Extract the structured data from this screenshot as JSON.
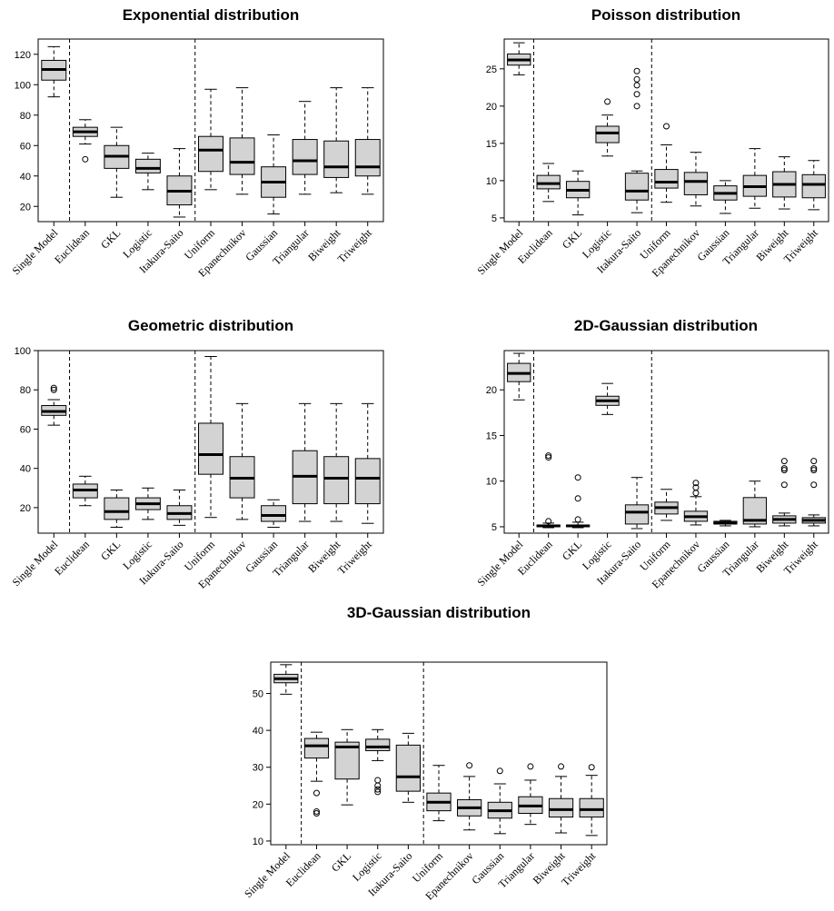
{
  "chart_data": [
    {
      "type": "boxplot",
      "title": "Exponential distribution",
      "categories": [
        "Single Model",
        "Euclidean",
        "GKL",
        "Logistic",
        "Itakura-Saito",
        "Uniform",
        "Epanechnikov",
        "Gaussian",
        "Triangular",
        "Biweight",
        "Triweight"
      ],
      "yticks": [
        20,
        40,
        60,
        80,
        100,
        120
      ],
      "ylim": [
        10,
        130
      ],
      "separators_after": [
        1,
        5
      ],
      "boxes": [
        {
          "min": 92,
          "q1": 103,
          "median": 110,
          "q3": 116,
          "max": 125,
          "outliers": []
        },
        {
          "min": 61,
          "q1": 66,
          "median": 69,
          "q3": 72,
          "max": 77,
          "outliers": [
            51
          ]
        },
        {
          "min": 26,
          "q1": 45,
          "median": 53,
          "q3": 60,
          "max": 72,
          "outliers": []
        },
        {
          "min": 31,
          "q1": 42,
          "median": 45,
          "q3": 51,
          "max": 55,
          "outliers": []
        },
        {
          "min": 13,
          "q1": 21,
          "median": 30,
          "q3": 40,
          "max": 58,
          "outliers": []
        },
        {
          "min": 31,
          "q1": 43,
          "median": 57,
          "q3": 66,
          "max": 97,
          "outliers": []
        },
        {
          "min": 28,
          "q1": 41,
          "median": 49,
          "q3": 65,
          "max": 98,
          "outliers": []
        },
        {
          "min": 15,
          "q1": 26,
          "median": 36,
          "q3": 46,
          "max": 67,
          "outliers": []
        },
        {
          "min": 28,
          "q1": 41,
          "median": 50,
          "q3": 64,
          "max": 89,
          "outliers": []
        },
        {
          "min": 29,
          "q1": 39,
          "median": 46,
          "q3": 63,
          "max": 98,
          "outliers": []
        },
        {
          "min": 28,
          "q1": 40,
          "median": 46,
          "q3": 64,
          "max": 98,
          "outliers": []
        }
      ]
    },
    {
      "type": "boxplot",
      "title": "Poisson distribution",
      "categories": [
        "Single Model",
        "Euclidean",
        "GKL",
        "Logistic",
        "Itakura-Saito",
        "Uniform",
        "Epanechnikov",
        "Gaussian",
        "Triangular",
        "Biweight",
        "Triweight"
      ],
      "yticks": [
        5,
        10,
        15,
        20,
        25
      ],
      "ylim": [
        4.5,
        29
      ],
      "separators_after": [
        1,
        5
      ],
      "boxes": [
        {
          "min": 24.2,
          "q1": 25.5,
          "median": 26.2,
          "q3": 27,
          "max": 28.5,
          "outliers": []
        },
        {
          "min": 7.2,
          "q1": 8.9,
          "median": 9.6,
          "q3": 10.7,
          "max": 12.3,
          "outliers": []
        },
        {
          "min": 5.4,
          "q1": 7.7,
          "median": 8.7,
          "q3": 9.9,
          "max": 11.3,
          "outliers": []
        },
        {
          "min": 13.3,
          "q1": 15.1,
          "median": 16.4,
          "q3": 17.3,
          "max": 18.8,
          "outliers": [
            20.6
          ]
        },
        {
          "min": 5.7,
          "q1": 7.4,
          "median": 8.6,
          "q3": 11,
          "max": 11.3,
          "outliers": [
            20,
            21.6,
            22.8,
            23.6,
            24.7
          ]
        },
        {
          "min": 7.1,
          "q1": 9,
          "median": 9.8,
          "q3": 11.5,
          "max": 14.8,
          "outliers": [
            17.3
          ]
        },
        {
          "min": 6.6,
          "q1": 8.1,
          "median": 9.9,
          "q3": 11.1,
          "max": 13.8,
          "outliers": []
        },
        {
          "min": 5.6,
          "q1": 7.4,
          "median": 8.3,
          "q3": 9.3,
          "max": 10,
          "outliers": []
        },
        {
          "min": 6.3,
          "q1": 7.9,
          "median": 9.2,
          "q3": 10.7,
          "max": 14.3,
          "outliers": []
        },
        {
          "min": 6.2,
          "q1": 7.8,
          "median": 9.5,
          "q3": 11.2,
          "max": 13.2,
          "outliers": []
        },
        {
          "min": 6.1,
          "q1": 7.7,
          "median": 9.5,
          "q3": 10.8,
          "max": 12.7,
          "outliers": []
        }
      ]
    },
    {
      "type": "boxplot",
      "title": "Geometric distribution",
      "categories": [
        "Single Model",
        "Euclidean",
        "GKL",
        "Logistic",
        "Itakura-Saito",
        "Uniform",
        "Epanechnikov",
        "Gaussian",
        "Triangular",
        "Biweight",
        "Triweight"
      ],
      "yticks": [
        20,
        40,
        60,
        80,
        100
      ],
      "ylim": [
        7,
        100
      ],
      "separators_after": [
        1,
        5
      ],
      "boxes": [
        {
          "min": 62,
          "q1": 67,
          "median": 69,
          "q3": 72,
          "max": 75,
          "outliers": [
            80,
            81
          ]
        },
        {
          "min": 21,
          "q1": 25,
          "median": 29,
          "q3": 32,
          "max": 36,
          "outliers": []
        },
        {
          "min": 10,
          "q1": 14,
          "median": 18,
          "q3": 25,
          "max": 29,
          "outliers": []
        },
        {
          "min": 14,
          "q1": 19,
          "median": 22,
          "q3": 25,
          "max": 30,
          "outliers": []
        },
        {
          "min": 11,
          "q1": 14,
          "median": 17,
          "q3": 21,
          "max": 29,
          "outliers": []
        },
        {
          "min": 15,
          "q1": 37,
          "median": 47,
          "q3": 63,
          "max": 97,
          "outliers": []
        },
        {
          "min": 14,
          "q1": 25,
          "median": 35,
          "q3": 46,
          "max": 73,
          "outliers": []
        },
        {
          "min": 10,
          "q1": 13,
          "median": 16,
          "q3": 21,
          "max": 24,
          "outliers": []
        },
        {
          "min": 13,
          "q1": 22,
          "median": 36,
          "q3": 49,
          "max": 73,
          "outliers": []
        },
        {
          "min": 13,
          "q1": 22,
          "median": 35,
          "q3": 46,
          "max": 73,
          "outliers": []
        },
        {
          "min": 12,
          "q1": 22,
          "median": 35,
          "q3": 45,
          "max": 73,
          "outliers": []
        }
      ]
    },
    {
      "type": "boxplot",
      "title": "2D-Gaussian distribution",
      "categories": [
        "Single Model",
        "Euclidean",
        "GKL",
        "Logistic",
        "Itakura-Saito",
        "Uniform",
        "Epanechnikov",
        "Gaussian",
        "Triangular",
        "Biweight",
        "Triweight"
      ],
      "yticks": [
        5,
        10,
        15,
        20
      ],
      "ylim": [
        4.3,
        24.3
      ],
      "separators_after": [
        1,
        5
      ],
      "boxes": [
        {
          "min": 18.9,
          "q1": 20.9,
          "median": 21.8,
          "q3": 22.9,
          "max": 24,
          "outliers": []
        },
        {
          "min": 4.9,
          "q1": 5,
          "median": 5.1,
          "q3": 5.2,
          "max": 5.4,
          "outliers": [
            5.6,
            12.6,
            12.8
          ]
        },
        {
          "min": 4.9,
          "q1": 5,
          "median": 5.1,
          "q3": 5.2,
          "max": 5.5,
          "outliers": [
            5.8,
            8.1,
            10.4
          ]
        },
        {
          "min": 17.3,
          "q1": 18.3,
          "median": 18.8,
          "q3": 19.3,
          "max": 20.7,
          "outliers": []
        },
        {
          "min": 4.8,
          "q1": 5.3,
          "median": 6.6,
          "q3": 7.4,
          "max": 10.4,
          "outliers": []
        },
        {
          "min": 5.7,
          "q1": 6.4,
          "median": 7.1,
          "q3": 7.7,
          "max": 9.1,
          "outliers": []
        },
        {
          "min": 5.2,
          "q1": 5.6,
          "median": 6.1,
          "q3": 6.7,
          "max": 8.3,
          "outliers": [
            8.7,
            9.3,
            9.8
          ]
        },
        {
          "min": 5.1,
          "q1": 5.3,
          "median": 5.4,
          "q3": 5.6,
          "max": 5.7,
          "outliers": []
        },
        {
          "min": 5,
          "q1": 5.3,
          "median": 5.7,
          "q3": 8.2,
          "max": 10,
          "outliers": []
        },
        {
          "min": 5.1,
          "q1": 5.4,
          "median": 5.8,
          "q3": 6.2,
          "max": 6.5,
          "outliers": [
            9.6,
            11.2,
            11.4,
            12.2
          ]
        },
        {
          "min": 5.1,
          "q1": 5.4,
          "median": 5.7,
          "q3": 6,
          "max": 6.3,
          "outliers": [
            9.6,
            11.2,
            11.4,
            12.2
          ]
        }
      ]
    },
    {
      "type": "boxplot",
      "title": "3D-Gaussian distribution",
      "categories": [
        "Single Model",
        "Euclidean",
        "GKL",
        "Logistic",
        "Itakura-Saito",
        "Uniform",
        "Epanechnikov",
        "Gaussian",
        "Triangular",
        "Biweight",
        "Triweight"
      ],
      "yticks": [
        10,
        20,
        30,
        40,
        50
      ],
      "ylim": [
        9,
        58.5
      ],
      "separators_after": [
        1,
        5
      ],
      "boxes": [
        {
          "min": 49.8,
          "q1": 52.9,
          "median": 54,
          "q3": 55.2,
          "max": 57.8,
          "outliers": []
        },
        {
          "min": 26.2,
          "q1": 32.5,
          "median": 35.8,
          "q3": 37.8,
          "max": 39.5,
          "outliers": [
            17.5,
            18,
            23
          ]
        },
        {
          "min": 19.8,
          "q1": 26.8,
          "median": 35.5,
          "q3": 36.8,
          "max": 40.2,
          "outliers": []
        },
        {
          "min": 31.8,
          "q1": 34.5,
          "median": 35.5,
          "q3": 37.6,
          "max": 40.2,
          "outliers": [
            23.3,
            24,
            25,
            26.5
          ]
        },
        {
          "min": 20.5,
          "q1": 23.5,
          "median": 27.4,
          "q3": 36,
          "max": 39.2,
          "outliers": []
        },
        {
          "min": 15.5,
          "q1": 18.2,
          "median": 20.5,
          "q3": 23,
          "max": 30.5,
          "outliers": []
        },
        {
          "min": 13,
          "q1": 16.8,
          "median": 19,
          "q3": 21.2,
          "max": 27.5,
          "outliers": [
            30.5
          ]
        },
        {
          "min": 12,
          "q1": 16.2,
          "median": 18.2,
          "q3": 20.5,
          "max": 25.5,
          "outliers": [
            29
          ]
        },
        {
          "min": 14.5,
          "q1": 17.5,
          "median": 19.5,
          "q3": 22,
          "max": 26.5,
          "outliers": [
            30.2
          ]
        },
        {
          "min": 12.2,
          "q1": 16.5,
          "median": 18.5,
          "q3": 21.5,
          "max": 27.5,
          "outliers": [
            30.2
          ]
        },
        {
          "min": 11.5,
          "q1": 16.5,
          "median": 18.5,
          "q3": 21.5,
          "max": 27.8,
          "outliers": [
            30
          ]
        }
      ]
    }
  ]
}
